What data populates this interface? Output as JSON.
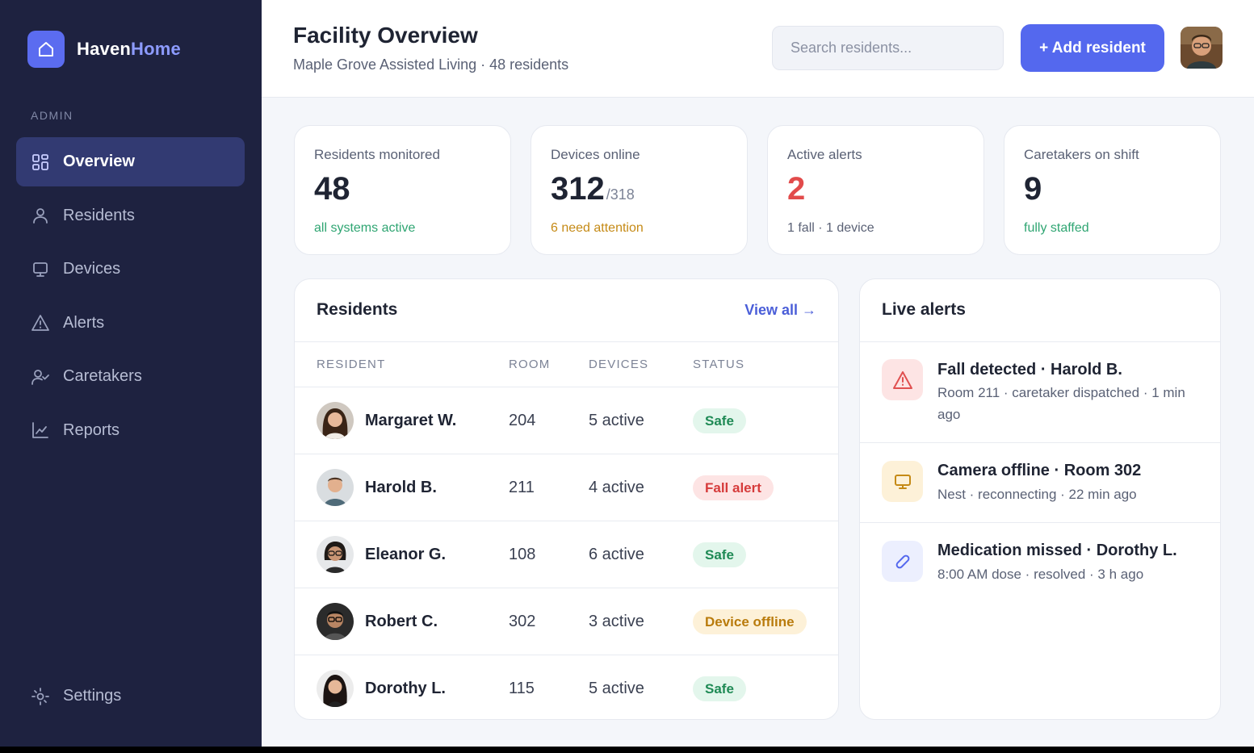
{
  "brand": {
    "name_part1": "Haven",
    "name_part2": "Home"
  },
  "sidebar": {
    "section_label": "ADMIN",
    "items": [
      {
        "label": "Overview",
        "icon": "grid-icon",
        "active": true
      },
      {
        "label": "Residents",
        "icon": "user-icon"
      },
      {
        "label": "Devices",
        "icon": "monitor-icon"
      },
      {
        "label": "Alerts",
        "icon": "warning-icon"
      },
      {
        "label": "Caretakers",
        "icon": "user-check-icon"
      },
      {
        "label": "Reports",
        "icon": "chart-icon"
      }
    ],
    "settings_label": "Settings"
  },
  "header": {
    "title": "Facility Overview",
    "subtitle": "Maple Grove Assisted Living · 48 residents",
    "search_placeholder": "Search residents...",
    "add_button": "+ Add resident"
  },
  "stats": [
    {
      "label": "Residents monitored",
      "value": "48",
      "suffix": "",
      "note": "all systems active",
      "note_color": "#2fa572",
      "value_color": "#1f2433"
    },
    {
      "label": "Devices online",
      "value": "312",
      "suffix": "/318",
      "note": "6 need attention",
      "note_color": "#c58a16",
      "value_color": "#1f2433"
    },
    {
      "label": "Active alerts",
      "value": "2",
      "suffix": "",
      "note": "1 fall · 1 device",
      "note_color": "#5a6175",
      "value_color": "#e24b4b"
    },
    {
      "label": "Caretakers on shift",
      "value": "9",
      "suffix": "",
      "note": "fully staffed",
      "note_color": "#2fa572",
      "value_color": "#1f2433"
    }
  ],
  "residents": {
    "title": "Residents",
    "view_all": "View all →",
    "columns": [
      "RESIDENT",
      "ROOM",
      "DEVICES",
      "STATUS"
    ],
    "rows": [
      {
        "name": "Margaret W.",
        "room": "204",
        "devices": "5 active",
        "status": "Safe",
        "status_kind": "safe"
      },
      {
        "name": "Harold B.",
        "room": "211",
        "devices": "4 active",
        "status": "Fall alert",
        "status_kind": "alert"
      },
      {
        "name": "Eleanor G.",
        "room": "108",
        "devices": "6 active",
        "status": "Safe",
        "status_kind": "safe"
      },
      {
        "name": "Robert C.",
        "room": "302",
        "devices": "3 active",
        "status": "Device offline",
        "status_kind": "warn"
      },
      {
        "name": "Dorothy L.",
        "room": "115",
        "devices": "5 active",
        "status": "Safe",
        "status_kind": "safe"
      }
    ]
  },
  "alerts": {
    "title": "Live alerts",
    "items": [
      {
        "title": "Fall detected · Harold B.",
        "desc": "Room 211 · caretaker dispatched · 1 min ago",
        "icon": "warning-icon",
        "kind": "danger"
      },
      {
        "title": "Camera offline · Room 302",
        "desc": "Nest · reconnecting · 22 min ago",
        "icon": "monitor-icon",
        "kind": "warn"
      },
      {
        "title": "Medication missed · Dorothy L.",
        "desc": "8:00 AM dose · resolved · 3 h ago",
        "icon": "pill-icon",
        "kind": "info"
      }
    ]
  },
  "colors": {
    "sidebar_bg": "#1e2240",
    "accent": "#5468ee",
    "safe_bg": "#e3f6ec",
    "safe_fg": "#1f8a55",
    "alert_bg": "#fde4e4",
    "alert_fg": "#d63b3b",
    "warn_bg": "#fdf1d8",
    "warn_fg": "#b97b0c"
  }
}
